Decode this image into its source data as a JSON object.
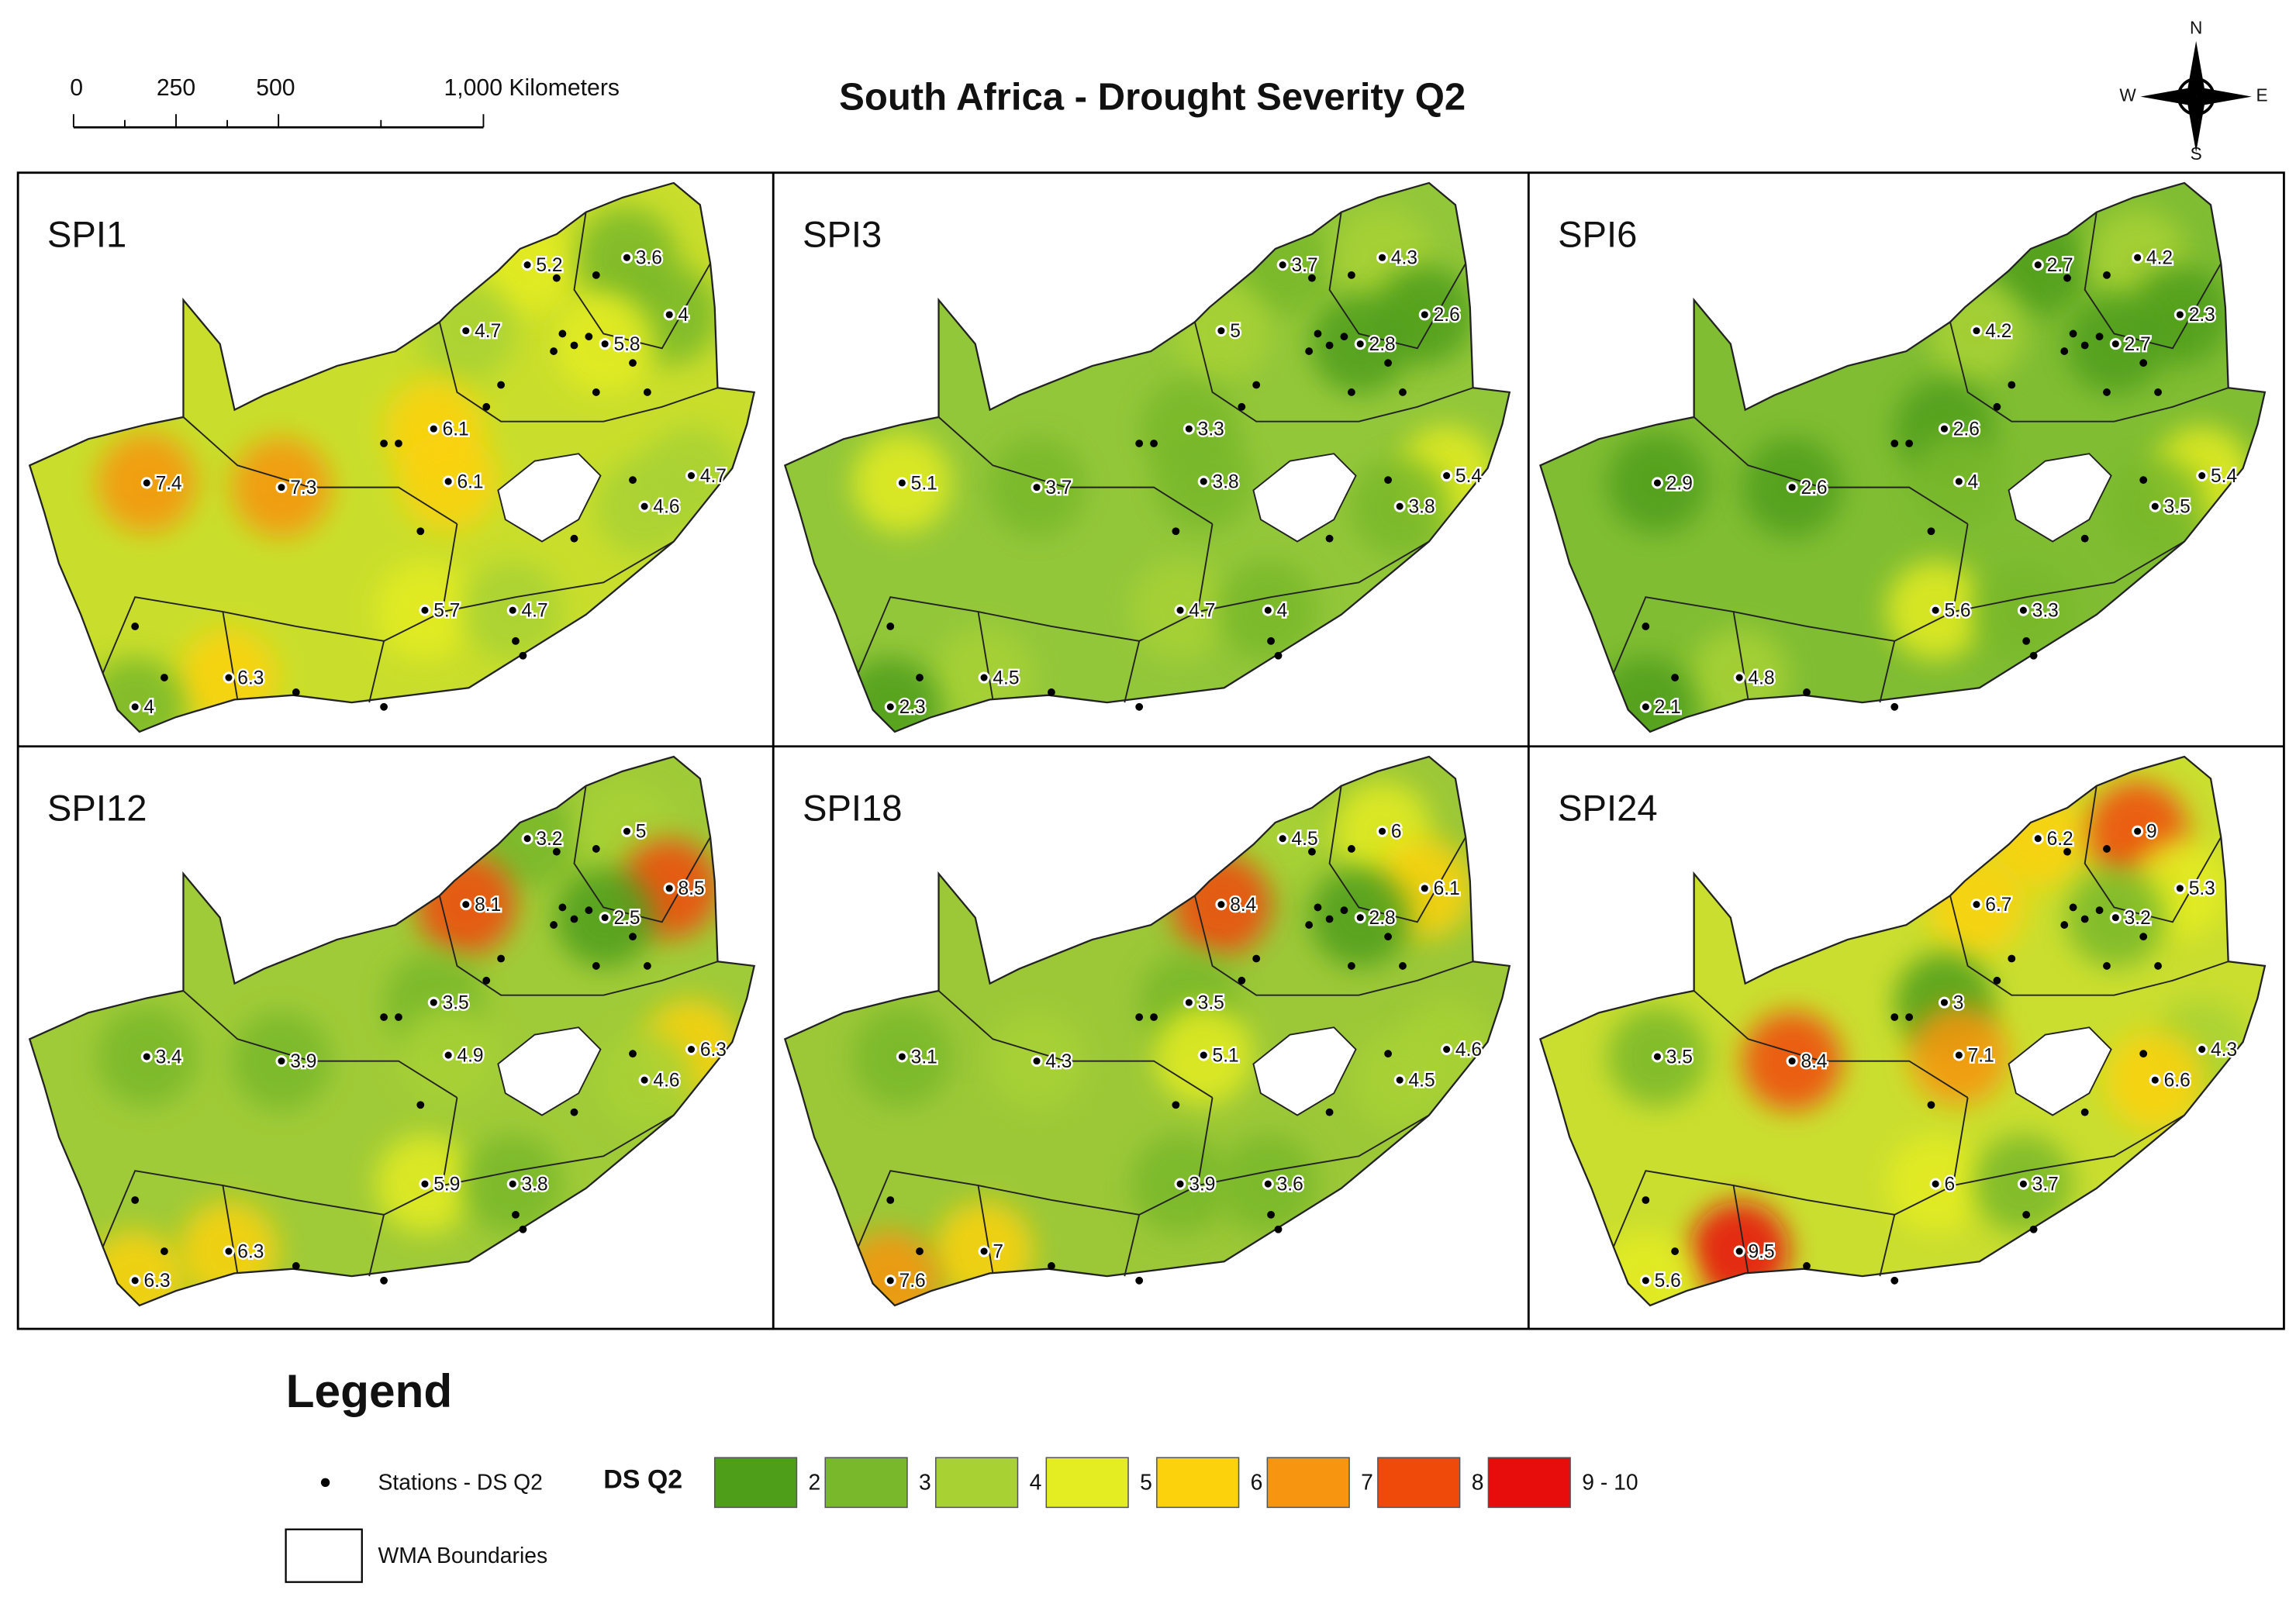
{
  "title": "South Africa - Drought Severity Q2",
  "scale_bar": {
    "labels": [
      "0",
      "250",
      "500",
      "1,000 Kilometers"
    ]
  },
  "compass": {
    "n": "N",
    "e": "E",
    "s": "S",
    "w": "W"
  },
  "maps": [
    {
      "title": "SPI1",
      "color": "#c9de2c",
      "values": [
        5.2,
        3.6,
        4.7,
        4,
        5.8,
        6.1,
        7.4,
        7.3,
        6.1,
        4.7,
        4.6,
        5.7,
        4.7,
        6.3,
        4
      ]
    },
    {
      "title": "SPI3",
      "color": "#93c73a",
      "values": [
        3.7,
        4.3,
        5,
        2.6,
        2.8,
        3.3,
        5.1,
        3.7,
        3.8,
        5.4,
        3.8,
        4.7,
        4,
        4.5,
        2.3
      ]
    },
    {
      "title": "SPI6",
      "color": "#80bd33",
      "values": [
        2.7,
        4.2,
        4.2,
        2.3,
        2.7,
        2.6,
        2.9,
        2.6,
        4,
        5.4,
        3.5,
        5.6,
        3.3,
        4.8,
        2.1
      ]
    },
    {
      "title": "SPI12",
      "color": "#a0cb38",
      "values": [
        3.2,
        5,
        8.1,
        8.5,
        2.5,
        3.5,
        3.4,
        3.9,
        4.9,
        6.3,
        4.6,
        5.9,
        3.8,
        6.3,
        6.3
      ]
    },
    {
      "title": "SPI18",
      "color": "#9cc838",
      "values": [
        4.5,
        6,
        8.4,
        6.1,
        2.8,
        3.5,
        3.1,
        4.3,
        5.1,
        4.6,
        4.5,
        3.9,
        3.6,
        7,
        7.6
      ]
    },
    {
      "title": "SPI24",
      "color": "#cade30",
      "values": [
        6.2,
        9,
        6.7,
        5.3,
        3.2,
        3,
        3.5,
        8.4,
        7.1,
        4.3,
        6.6,
        6,
        3.7,
        9.5,
        5.6
      ]
    }
  ],
  "legend": {
    "title": "Legend",
    "stations": "Stations - DS Q2",
    "field": "DS Q2",
    "classes": [
      {
        "label": "2 - 3",
        "min": 2,
        "max": 3,
        "color": "#4f9e1a"
      },
      {
        "label": "3 - 4",
        "min": 3,
        "max": 4,
        "color": "#78b82a"
      },
      {
        "label": "4 - 5",
        "min": 4,
        "max": 5,
        "color": "#a8d234"
      },
      {
        "label": "5 - 6",
        "min": 5,
        "max": 6,
        "color": "#e4ec22"
      },
      {
        "label": "6 - 7",
        "min": 6,
        "max": 7,
        "color": "#fcd20c"
      },
      {
        "label": "7 - 8",
        "min": 7,
        "max": 8,
        "color": "#f79410"
      },
      {
        "label": "8 - 9",
        "min": 8,
        "max": 9,
        "color": "#f04a0a"
      },
      {
        "label": "9 - 10",
        "min": 9,
        "max": 10,
        "color": "#e80d0d"
      }
    ],
    "boundaries": "WMA Boundaries"
  }
}
